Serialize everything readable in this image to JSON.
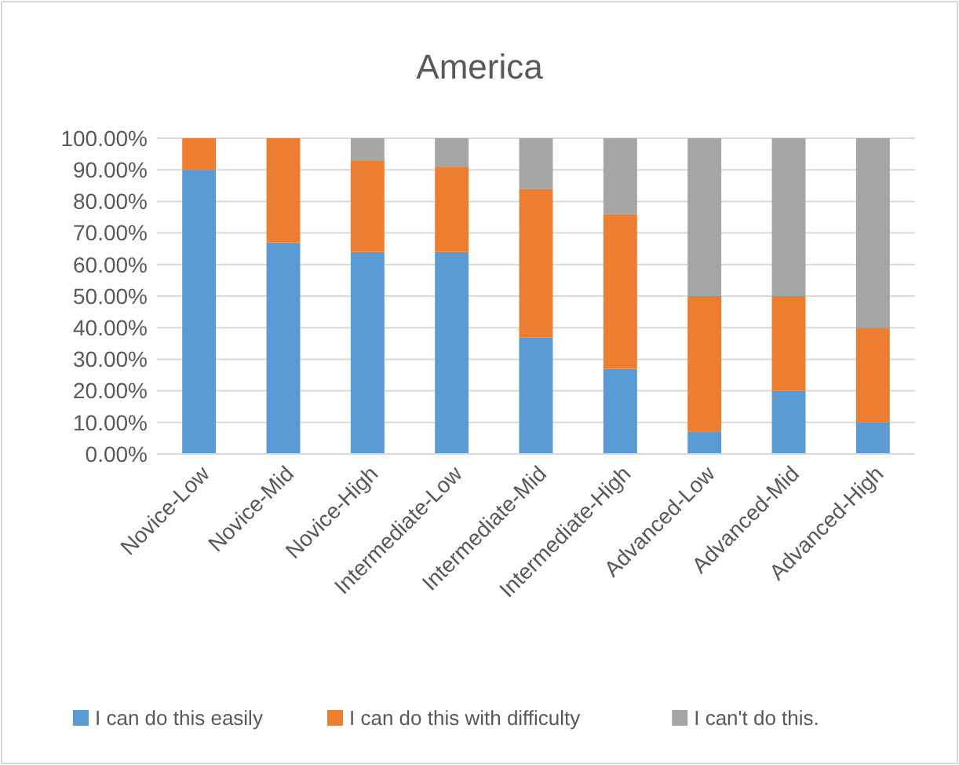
{
  "chart_data": {
    "type": "bar",
    "title": "America",
    "stacked": true,
    "categories": [
      "Novice-Low",
      "Novice-Mid",
      "Novice-High",
      "Intermediate-Low",
      "Intermediate-Mid",
      "Intermediate-High",
      "Advanced-Low",
      "Advanced-Mid",
      "Advanced-High"
    ],
    "series": [
      {
        "name": "I can do this easily",
        "color": "#5b9bd5",
        "values": [
          90,
          67,
          64,
          64,
          37,
          27,
          7,
          20,
          10
        ]
      },
      {
        "name": "I can do this with difficulty",
        "color": "#ed7d31",
        "values": [
          10,
          33,
          29,
          27,
          47,
          49,
          43,
          30,
          30
        ]
      },
      {
        "name": "I can't do this.",
        "color": "#a5a5a5",
        "values": [
          0,
          0,
          7,
          9,
          16,
          24,
          50,
          50,
          60
        ]
      }
    ],
    "ylim": [
      0,
      100
    ],
    "yticks": [
      {
        "value": 0,
        "label": "0.00%"
      },
      {
        "value": 10,
        "label": "10.00%"
      },
      {
        "value": 20,
        "label": "20.00%"
      },
      {
        "value": 30,
        "label": "30.00%"
      },
      {
        "value": 40,
        "label": "40.00%"
      },
      {
        "value": 50,
        "label": "50.00%"
      },
      {
        "value": 60,
        "label": "60.00%"
      },
      {
        "value": 70,
        "label": "70.00%"
      },
      {
        "value": 80,
        "label": "80.00%"
      },
      {
        "value": 90,
        "label": "90.00%"
      },
      {
        "value": 100,
        "label": "100.00%"
      }
    ],
    "grid": "y",
    "legend": "bottom"
  }
}
